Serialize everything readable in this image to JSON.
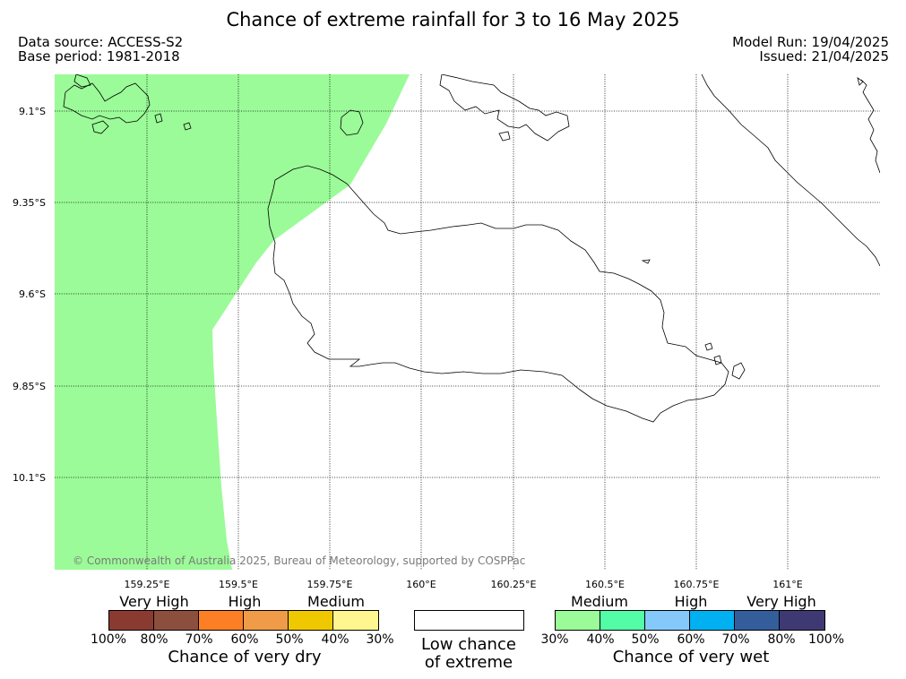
{
  "header": {
    "title": "Chance of extreme rainfall for 3 to 16 May 2025",
    "data_source": "Data source: ACCESS-S2",
    "base_period": "Base period: 1981-2018",
    "model_run": "Model Run: 19/04/2025",
    "issued": "Issued: 21/04/2025"
  },
  "map": {
    "lat_labels": [
      "9.1°S",
      "9.35°S",
      "9.6°S",
      "9.85°S",
      "10.1°S"
    ],
    "lon_labels": [
      "159.25°E",
      "159.5°E",
      "159.75°E",
      "160°E",
      "160.25°E",
      "160.5°E",
      "160.75°E",
      "161°E"
    ],
    "copyright": "© Commonwealth of Australia 2025, Bureau of Meteorology, supported by COSPPac",
    "shaded_category": "Medium chance of very wet (30%-40%)",
    "shade_color": "#9bfb98"
  },
  "legend": {
    "dry": {
      "categories": [
        "Very High",
        "High",
        "Medium"
      ],
      "colors": [
        "#8b3a32",
        "#8c4f3d",
        "#fd7f25",
        "#ef9b48",
        "#f0c800",
        "#fff690"
      ],
      "ticks": [
        "100%",
        "80%",
        "70%",
        "60%",
        "50%",
        "40%",
        "30%"
      ],
      "title": "Chance of very dry"
    },
    "low": {
      "line1": "Low chance",
      "line2": "of extreme"
    },
    "wet": {
      "categories": [
        "Medium",
        "High",
        "Very High"
      ],
      "colors": [
        "#9bfb98",
        "#53fca7",
        "#85c9fb",
        "#01b0f1",
        "#335e9b",
        "#3f3973"
      ],
      "ticks": [
        "30%",
        "40%",
        "50%",
        "60%",
        "70%",
        "80%",
        "100%"
      ],
      "title": "Chance of very wet"
    }
  }
}
